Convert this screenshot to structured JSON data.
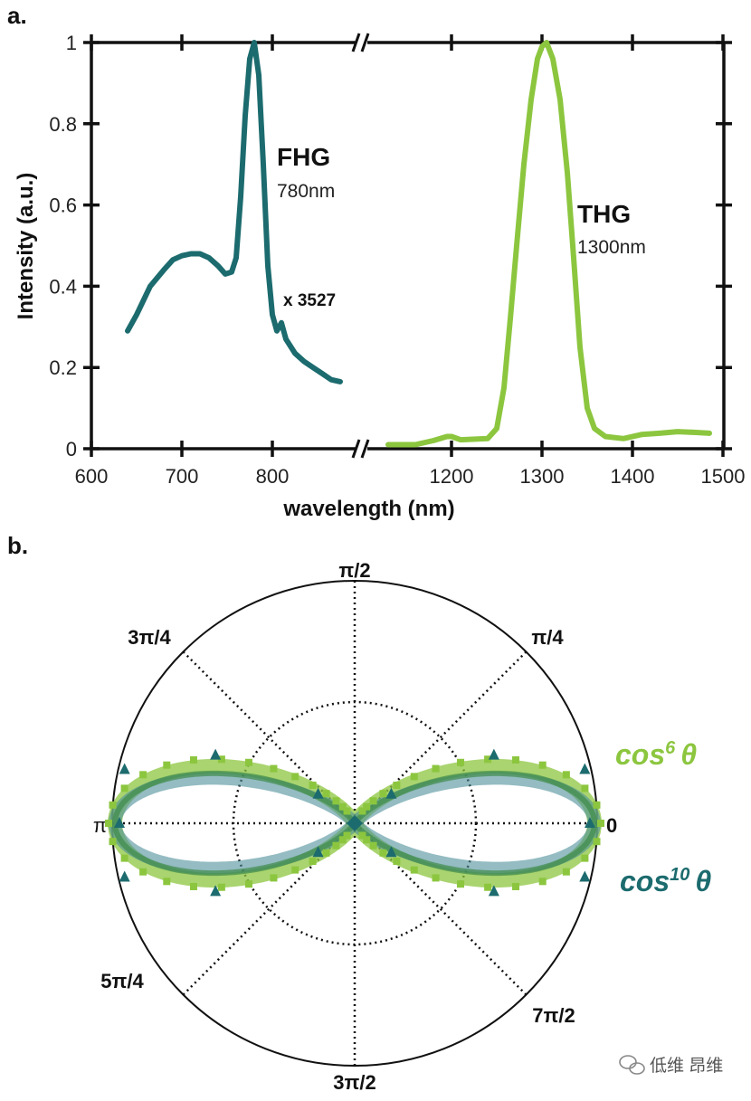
{
  "chart_data": [
    {
      "panel": "a.",
      "type": "line",
      "xlabel": "wavelength (nm)",
      "ylabel": "Intensity (a.u.)",
      "xlim": [
        600,
        1500
      ],
      "x_axis_break": [
        900,
        1100
      ],
      "ylim": [
        0,
        1
      ],
      "x_ticks": [
        "600",
        "700",
        "800",
        "1200",
        "1300",
        "1400",
        "1500"
      ],
      "y_ticks": [
        "0",
        "0.2",
        "0.4",
        "0.6",
        "0.8",
        "1"
      ],
      "grid": false,
      "series": [
        {
          "name": "FHG",
          "color": "#1c6b6e",
          "x": [
            640,
            650,
            665,
            680,
            690,
            700,
            710,
            720,
            730,
            740,
            748,
            755,
            760,
            765,
            770,
            775,
            780,
            785,
            790,
            795,
            800,
            805,
            810,
            815,
            825,
            835,
            845,
            855,
            865,
            875
          ],
          "y": [
            0.29,
            0.33,
            0.4,
            0.44,
            0.465,
            0.475,
            0.48,
            0.48,
            0.47,
            0.45,
            0.43,
            0.435,
            0.47,
            0.62,
            0.82,
            0.96,
            1.0,
            0.92,
            0.7,
            0.45,
            0.33,
            0.29,
            0.31,
            0.27,
            0.235,
            0.215,
            0.2,
            0.185,
            0.17,
            0.165
          ]
        },
        {
          "name": "THG",
          "color": "#8cc63f",
          "x": [
            1130,
            1160,
            1180,
            1195,
            1200,
            1210,
            1240,
            1250,
            1258,
            1265,
            1272,
            1280,
            1288,
            1295,
            1300,
            1305,
            1312,
            1320,
            1328,
            1335,
            1342,
            1350,
            1358,
            1370,
            1390,
            1410,
            1430,
            1450,
            1470,
            1485
          ],
          "y": [
            0.01,
            0.01,
            0.02,
            0.03,
            0.03,
            0.022,
            0.025,
            0.05,
            0.15,
            0.32,
            0.5,
            0.7,
            0.86,
            0.96,
            0.99,
            1.0,
            0.96,
            0.86,
            0.68,
            0.47,
            0.25,
            0.1,
            0.05,
            0.03,
            0.025,
            0.035,
            0.038,
            0.042,
            0.04,
            0.038
          ]
        }
      ],
      "annotations": [
        {
          "title": "FHG",
          "subtitle": "780nm",
          "note": "x 3527"
        },
        {
          "title": "THG",
          "subtitle": "1300nm"
        }
      ]
    },
    {
      "panel": "b.",
      "type": "polar",
      "angle_labels": [
        "0",
        "π/4",
        "π/2",
        "3π/4",
        "π",
        "5π/4",
        "3π/2",
        "7π/2"
      ],
      "rlim": [
        0,
        1
      ],
      "grid": true,
      "series": [
        {
          "name": "cos⁶ θ",
          "label_base": "cos",
          "label_exp": "6",
          "label_var": "θ",
          "exponent": 6,
          "color": "#8cc63f",
          "marker": "square"
        },
        {
          "name": "cos¹⁰ θ",
          "label_base": "cos",
          "label_exp": "10",
          "label_var": "θ",
          "exponent": 10,
          "color": "#1c6b6e",
          "marker": "triangle"
        }
      ]
    }
  ],
  "watermark": "低维 昂维"
}
